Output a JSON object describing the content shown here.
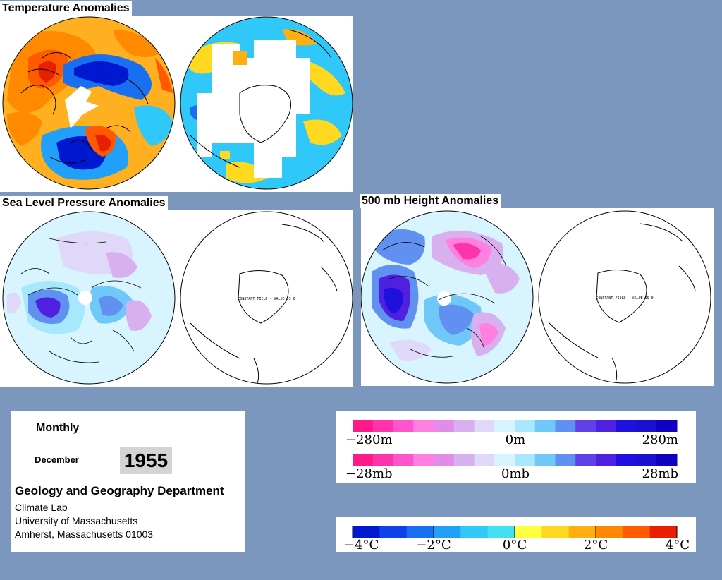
{
  "titles": {
    "temperature": "Temperature Anomalies",
    "slp": "Sea Level Pressure Anomalies",
    "height500": "500 mb Height Anomalies"
  },
  "constant_field_note": "CONSTANT FIELD - VALUE IS 0",
  "info": {
    "period": "Monthly",
    "month": "December",
    "year": "1955",
    "department": "Geology and Geography Department",
    "lab": "Climate Lab",
    "university": "University of Massachusetts",
    "address": "Amherst, Massachusetts 01003"
  },
  "legend_height": {
    "min_label": "−280m",
    "mid_label": "0m",
    "max_label": "280m"
  },
  "legend_pressure": {
    "min_label": "−28mb",
    "mid_label": "0mb",
    "max_label": "28mb"
  },
  "legend_temperature": {
    "labels": [
      "−4°C",
      "−2°C",
      "0°C",
      "2°C",
      "4°C"
    ]
  },
  "colors": {
    "background": "#7b97bd",
    "pressure_scale": [
      "#ff1a8c",
      "#ff33aa",
      "#ff55cc",
      "#ff80e0",
      "#e08ce8",
      "#d8b0f0",
      "#e0d8f8",
      "#d8f4ff",
      "#a8e8ff",
      "#70c8f8",
      "#6090f0",
      "#6040e8",
      "#5020e0",
      "#2010e0",
      "#1a10d0",
      "#1000c0"
    ],
    "temperature_scale": [
      "#0018d0",
      "#1040e8",
      "#1870f0",
      "#20a0f8",
      "#30c8f8",
      "#40e0f0",
      "#ffff40",
      "#ffd820",
      "#ffb010",
      "#ff8800",
      "#ff5a00",
      "#e82000"
    ]
  }
}
